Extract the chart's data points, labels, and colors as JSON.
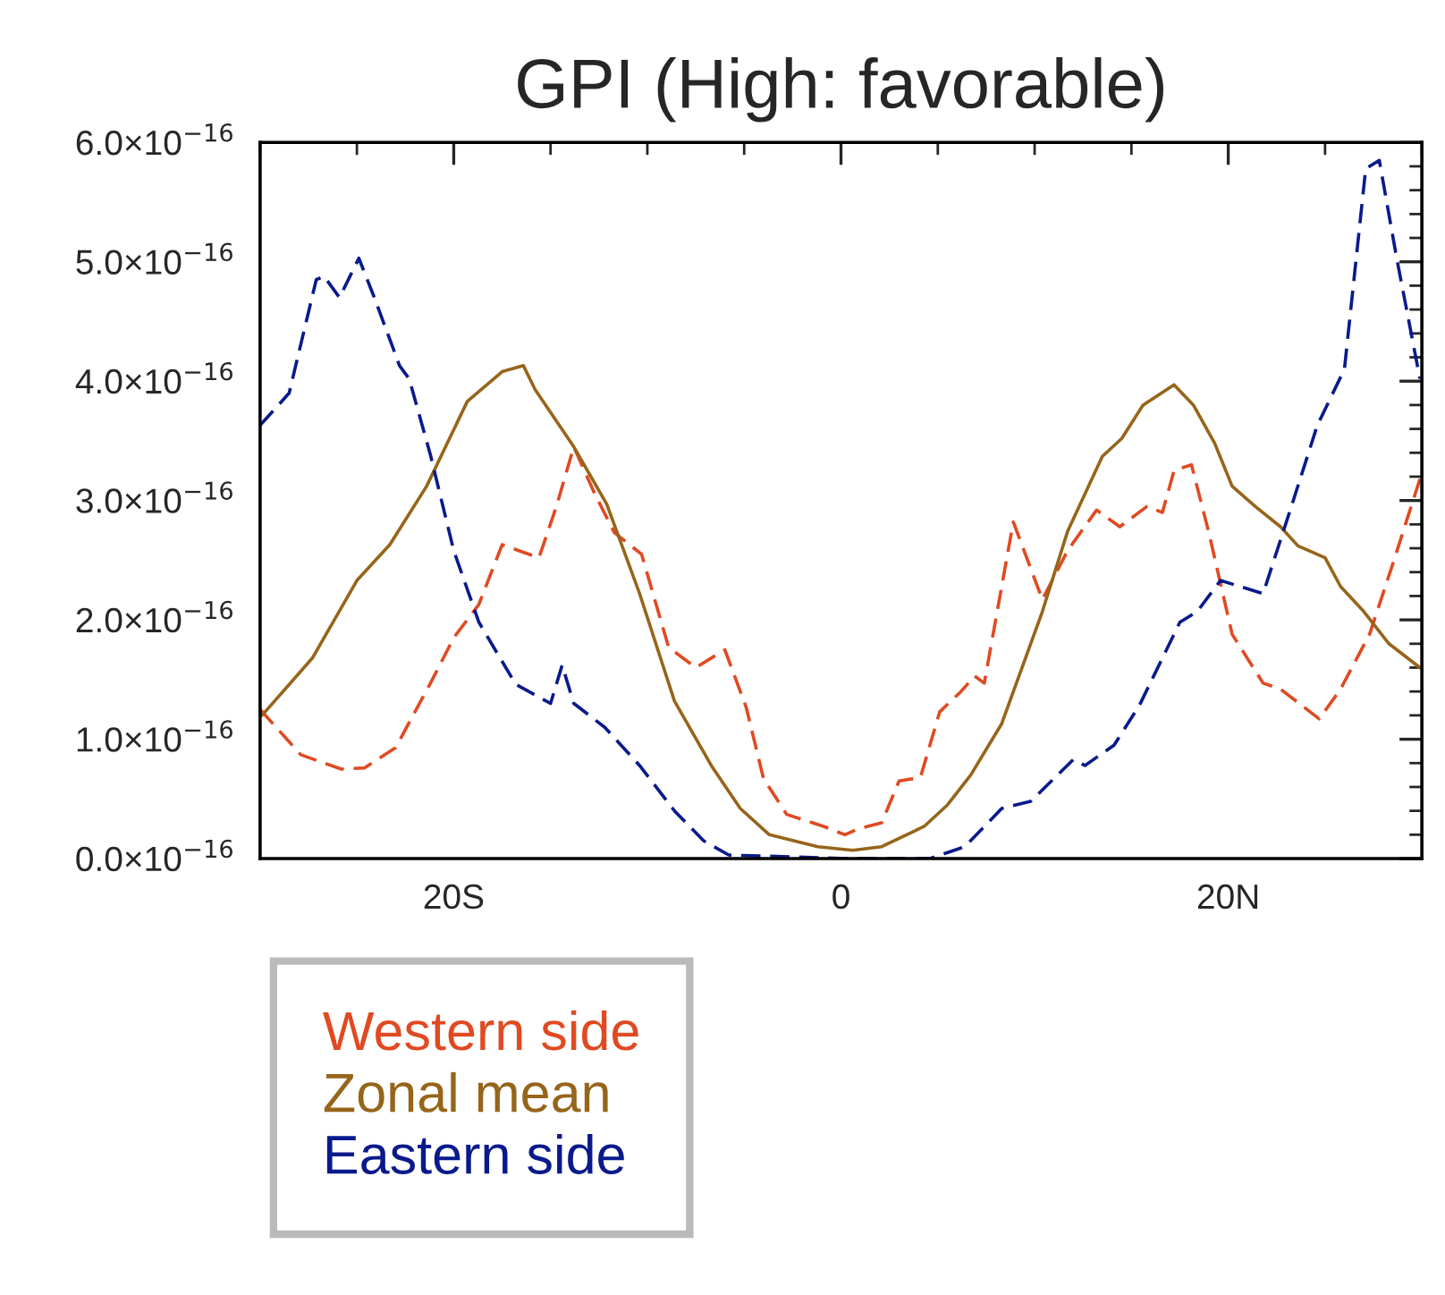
{
  "chart_data": {
    "type": "line",
    "title": "GPI (High: favorable)",
    "xlim": [
      -30,
      30
    ],
    "xticks": [
      {
        "value": -20,
        "label": "20S"
      },
      {
        "value": 0,
        "label": "0"
      },
      {
        "value": 20,
        "label": "20N"
      },
      {
        "value": -30,
        "label": null
      },
      {
        "value": -25,
        "label": null
      },
      {
        "value": -15,
        "label": null
      },
      {
        "value": -10,
        "label": null
      },
      {
        "value": -5,
        "label": null
      },
      {
        "value": 5,
        "label": null
      },
      {
        "value": 10,
        "label": null
      },
      {
        "value": 15,
        "label": null
      },
      {
        "value": 25,
        "label": null
      },
      {
        "value": 30,
        "label": null
      }
    ],
    "ylim": [
      0,
      6e-16
    ],
    "yticks": [
      {
        "value": 0,
        "label": "0.0×10$^{−16}$"
      },
      {
        "value": 1e-16,
        "label": "1.0×10$^{−16}$"
      },
      {
        "value": 2e-16,
        "label": "2.0×10$^{−16}$"
      },
      {
        "value": 3e-16,
        "label": "3.0×10$^{−16}$"
      },
      {
        "value": 4e-16,
        "label": "4.0×10$^{−16}$"
      },
      {
        "value": 5e-16,
        "label": "5.0×10$^{−16}$"
      },
      {
        "value": 6e-16,
        "label": "6.0×10$^{−16}$"
      },
      {
        "value": 2e-17,
        "label": null
      },
      {
        "value": 4e-17,
        "label": null
      },
      {
        "value": 6e-17,
        "label": null
      },
      {
        "value": 8e-17,
        "label": null
      },
      {
        "value": 1.2e-16,
        "label": null
      },
      {
        "value": 1.4e-16,
        "label": null
      },
      {
        "value": 1.6e-16,
        "label": null
      },
      {
        "value": 1.8e-16,
        "label": null
      },
      {
        "value": 2.2e-16,
        "label": null
      },
      {
        "value": 2.4e-16,
        "label": null
      },
      {
        "value": 2.6e-16,
        "label": null
      },
      {
        "value": 2.8e-16,
        "label": null
      },
      {
        "value": 3.2e-16,
        "label": null
      },
      {
        "value": 3.4e-16,
        "label": null
      },
      {
        "value": 3.6e-16,
        "label": null
      },
      {
        "value": 3.8e-16,
        "label": null
      },
      {
        "value": 4.2e-16,
        "label": null
      },
      {
        "value": 4.4e-16,
        "label": null
      },
      {
        "value": 4.6e-16,
        "label": null
      },
      {
        "value": 4.8e-16,
        "label": null
      },
      {
        "value": 5.2e-16,
        "label": null
      },
      {
        "value": 5.4e-16,
        "label": null
      },
      {
        "value": 5.6e-16,
        "label": null
      },
      {
        "value": 5.8e-16,
        "label": null
      }
    ],
    "grid": false,
    "legend": "bottom left",
    "series": [
      {
        "name": "Western side",
        "color": "#e04a22",
        "line_style": "dashed",
        "x": [
          -30,
          -27.9,
          -25.8,
          -24.6,
          -23,
          -21.2,
          -20,
          -18.7,
          -17.5,
          -15.6,
          -14.7,
          -13.8,
          -12.7,
          -11.7,
          -10.3,
          -8.9,
          -7.5,
          -6,
          -4.9,
          -4,
          -2.8,
          -0.9,
          0.2,
          0.9,
          2.1,
          3,
          4.1,
          5.1,
          6.2,
          6.9,
          7.4,
          8.9,
          10.4,
          11.7,
          13.2,
          14.4,
          15.8,
          16.6,
          17.2,
          18.1,
          19,
          20.2,
          21.8,
          22.7,
          24.7,
          25.8,
          27.3,
          28.5,
          29.9
        ],
        "values": [
          1.25e-16,
          8.7e-17,
          7.5e-17,
          7.6e-17,
          9.3e-17,
          1.47e-16,
          1.85e-16,
          2.13e-16,
          2.63e-16,
          2.52e-16,
          2.95e-16,
          3.45e-16,
          3.05e-16,
          2.73e-16,
          2.55e-16,
          1.77e-16,
          1.6e-16,
          1.75e-16,
          1.27e-16,
          6.7e-17,
          3.7e-17,
          2.7e-17,
          2e-17,
          2.5e-17,
          3e-17,
          6.5e-17,
          6.8e-17,
          1.23e-16,
          1.4e-16,
          1.53e-16,
          1.47e-16,
          2.82e-16,
          2.17e-16,
          2.58e-16,
          2.92e-16,
          2.78e-16,
          2.95e-16,
          2.9e-16,
          3.25e-16,
          3.3e-16,
          2.73e-16,
          1.88e-16,
          1.47e-16,
          1.42e-16,
          1.17e-16,
          1.42e-16,
          1.88e-16,
          2.47e-16,
          3.18e-16
        ]
      },
      {
        "name": "Zonal mean",
        "color": "#96651a",
        "line_style": "solid",
        "x": [
          -29.9,
          -27.3,
          -25,
          -23.3,
          -21.4,
          -19.3,
          -17.5,
          -16.4,
          -15.8,
          -13.8,
          -12.1,
          -10.4,
          -8.6,
          -6.7,
          -5.2,
          -3.7,
          -1.2,
          0.6,
          2.1,
          4.3,
          5.5,
          6.7,
          8.3,
          10.4,
          11.7,
          13.5,
          14.5,
          15.6,
          17.2,
          18.2,
          19.3,
          20.2,
          21.4,
          22.7,
          23.6,
          25,
          25.8,
          27,
          28.3,
          29.9
        ],
        "values": [
          1.2e-16,
          1.68e-16,
          2.33e-16,
          2.63e-16,
          3.12e-16,
          3.83e-16,
          4.08e-16,
          4.13e-16,
          3.93e-16,
          3.45e-16,
          2.97e-16,
          2.22e-16,
          1.32e-16,
          7.8e-17,
          4.2e-17,
          2e-17,
          1e-17,
          7e-18,
          1e-17,
          2.7e-17,
          4.5e-17,
          7e-17,
          1.13e-16,
          2.07e-16,
          2.74e-16,
          3.37e-16,
          3.52e-16,
          3.8e-16,
          3.97e-16,
          3.8e-16,
          3.48e-16,
          3.12e-16,
          2.95e-16,
          2.78e-16,
          2.62e-16,
          2.52e-16,
          2.28e-16,
          2.07e-16,
          1.8e-16,
          1.6e-16
        ]
      },
      {
        "name": "Eastern side",
        "color": "#0a1a8c",
        "line_style": "dashed",
        "x": [
          -30,
          -28.5,
          -27.1,
          -26.7,
          -25.9,
          -24.9,
          -24.1,
          -22.8,
          -22.3,
          -21.2,
          -20,
          -18.7,
          -16.8,
          -15,
          -14.4,
          -13.8,
          -12.2,
          -10.4,
          -8.6,
          -7.1,
          -5.8,
          0.3,
          4.6,
          6.4,
          8.3,
          9.8,
          12,
          12.6,
          14.1,
          15.4,
          17.5,
          18.4,
          19.6,
          21.8,
          23.3,
          24.6,
          26,
          27.1,
          27.8,
          28.7,
          29.9
        ],
        "values": [
          3.63e-16,
          3.9e-16,
          4.85e-16,
          4.88e-16,
          4.7e-16,
          5.03e-16,
          4.7e-16,
          4.13e-16,
          4.02e-16,
          3.38e-16,
          2.58e-16,
          1.98e-16,
          1.46e-16,
          1.3e-16,
          1.62e-16,
          1.3e-16,
          1.1e-16,
          7.8e-17,
          4e-17,
          1.5e-17,
          3e-18,
          0,
          0,
          1e-17,
          4.2e-17,
          4.8e-17,
          8.3e-17,
          7.8e-17,
          9.5e-17,
          1.28e-16,
          1.98e-16,
          2.07e-16,
          2.33e-16,
          2.22e-16,
          2.97e-16,
          3.63e-16,
          4.1e-16,
          5.78e-16,
          5.85e-16,
          5.03e-16,
          4.02e-16
        ]
      }
    ]
  }
}
